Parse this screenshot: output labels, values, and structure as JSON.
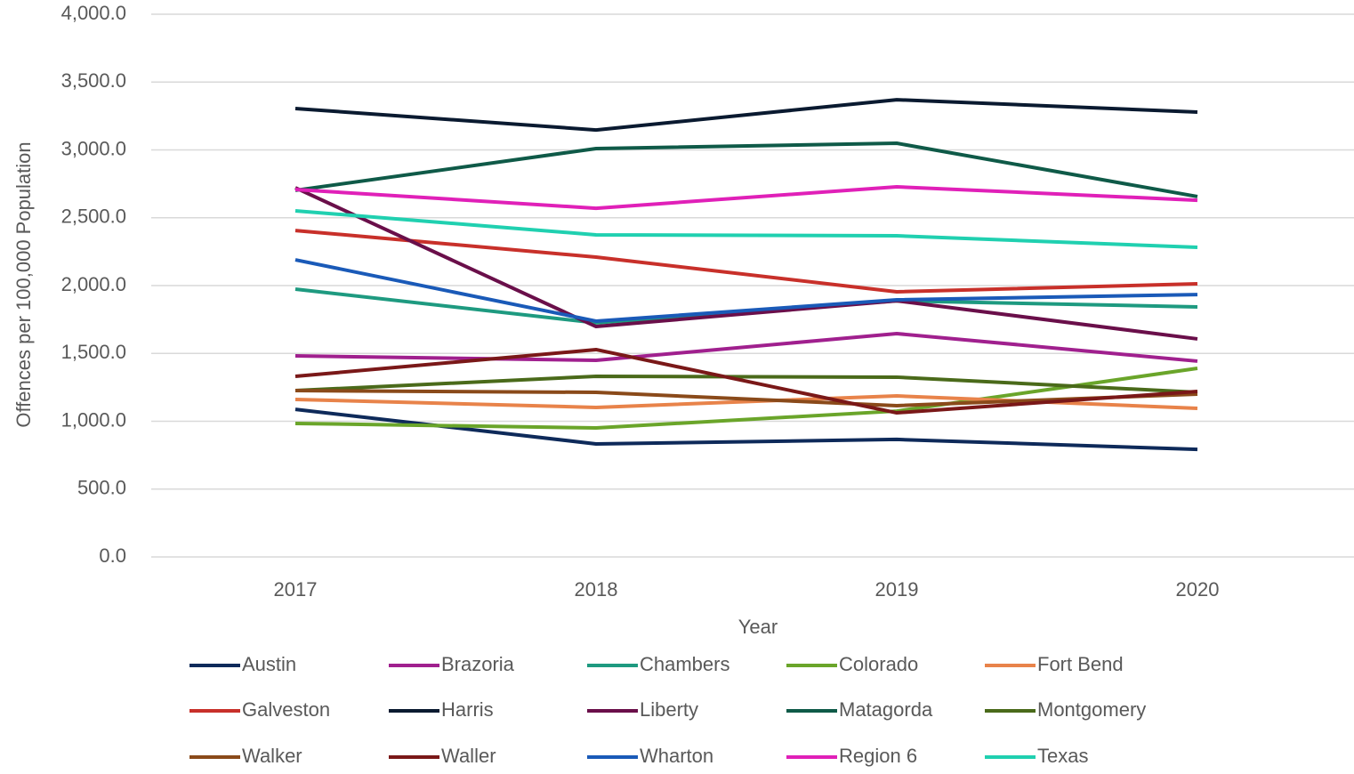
{
  "chart_data": {
    "type": "line",
    "x_label": "Year",
    "y_label": "Offences per 100,000 Population",
    "categories": [
      "2017",
      "2018",
      "2019",
      "2020"
    ],
    "ylim": [
      0,
      4000
    ],
    "yticks": [
      {
        "value": 0,
        "label": "0.0"
      },
      {
        "value": 500,
        "label": "500.0"
      },
      {
        "value": 1000,
        "label": "1,000.0"
      },
      {
        "value": 1500,
        "label": "1,500.0"
      },
      {
        "value": 2000,
        "label": "2,000.0"
      },
      {
        "value": 2500,
        "label": "2,500.0"
      },
      {
        "value": 3000,
        "label": "3,000.0"
      },
      {
        "value": 3500,
        "label": "3,500.0"
      },
      {
        "value": 4000,
        "label": "4,000.0"
      }
    ],
    "grid": true,
    "legend": "bottom",
    "series": [
      {
        "name": "Austin",
        "color": "#0e2a5a",
        "values": [
          1088,
          833,
          866,
          793
        ]
      },
      {
        "name": "Brazoria",
        "color": "#a0208e",
        "values": [
          1482,
          1449,
          1646,
          1443
        ]
      },
      {
        "name": "Chambers",
        "color": "#1e9a80",
        "values": [
          1974,
          1725,
          1888,
          1843
        ]
      },
      {
        "name": "Colorado",
        "color": "#6aa52a",
        "values": [
          984,
          951,
          1075,
          1390
        ]
      },
      {
        "name": "Fort Bend",
        "color": "#e8834a",
        "values": [
          1161,
          1102,
          1187,
          1095
        ]
      },
      {
        "name": "Galveston",
        "color": "#c8302a",
        "values": [
          2406,
          2210,
          1954,
          2013
        ]
      },
      {
        "name": "Harris",
        "color": "#0a1a30",
        "values": [
          3305,
          3147,
          3370,
          3279
        ]
      },
      {
        "name": "Liberty",
        "color": "#6a0f4a",
        "values": [
          2721,
          1698,
          1888,
          1607
        ]
      },
      {
        "name": "Matagorda",
        "color": "#0f5a48",
        "values": [
          2702,
          3010,
          3049,
          2656
        ]
      },
      {
        "name": "Montgomery",
        "color": "#4a6a1a",
        "values": [
          1226,
          1331,
          1325,
          1213
        ]
      },
      {
        "name": "Walker",
        "color": "#8a4a1a",
        "values": [
          1226,
          1213,
          1115,
          1200
        ]
      },
      {
        "name": "Waller",
        "color": "#7a1818",
        "values": [
          1331,
          1528,
          1062,
          1220
        ]
      },
      {
        "name": "Wharton",
        "color": "#1a5ab8",
        "values": [
          2190,
          1738,
          1895,
          1934
        ]
      },
      {
        "name": "Region 6",
        "color": "#e020b8",
        "values": [
          2708,
          2570,
          2728,
          2629
        ]
      },
      {
        "name": "Texas",
        "color": "#20d0b0",
        "values": [
          2551,
          2374,
          2367,
          2282
        ]
      }
    ]
  }
}
